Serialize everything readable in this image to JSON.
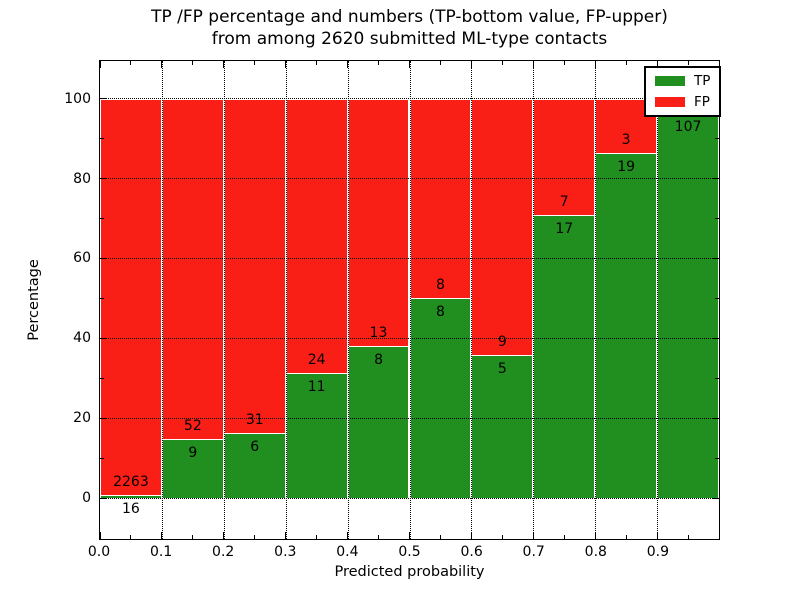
{
  "chart_data": {
    "type": "bar",
    "stacked_percentage": true,
    "title_line1": "TP /FP percentage and numbers (TP-bottom value, FP-upper)",
    "title_line2": "from among 2620 submitted ML-type contacts",
    "xlabel": "Predicted probability",
    "ylabel": "Percentage",
    "total_submitted_contacts": 2620,
    "xlim": [
      0.0,
      1.0
    ],
    "y_tick_values": [
      0,
      20,
      40,
      60,
      80,
      100
    ],
    "x_tick_labels": [
      "0.0",
      "0.1",
      "0.2",
      "0.3",
      "0.4",
      "0.5",
      "0.6",
      "0.7",
      "0.8",
      "0.9"
    ],
    "grid_style": "dotted",
    "colors": {
      "tp_green": "#208f20",
      "fp_red": "#fa1f16",
      "text": "#000000",
      "background": "#ffffff"
    },
    "legend": {
      "position": "upper right",
      "items": [
        {
          "label": "TP",
          "color": "#208f20"
        },
        {
          "label": "FP",
          "color": "#fa1f16"
        }
      ]
    },
    "bins": [
      {
        "range": "0.0-0.1",
        "tp": 16,
        "fp": 2263,
        "fp_label_visible": true
      },
      {
        "range": "0.1-0.2",
        "tp": 9,
        "fp": 52,
        "fp_label_visible": true
      },
      {
        "range": "0.2-0.3",
        "tp": 6,
        "fp": 31,
        "fp_label_visible": true
      },
      {
        "range": "0.3-0.4",
        "tp": 11,
        "fp": 24,
        "fp_label_visible": true
      },
      {
        "range": "0.4-0.5",
        "tp": 8,
        "fp": 13,
        "fp_label_visible": true
      },
      {
        "range": "0.5-0.6",
        "tp": 8,
        "fp": 8,
        "fp_label_visible": true
      },
      {
        "range": "0.6-0.7",
        "tp": 5,
        "fp": 9,
        "fp_label_visible": true
      },
      {
        "range": "0.7-0.8",
        "tp": 17,
        "fp": 7,
        "fp_label_visible": true
      },
      {
        "range": "0.8-0.9",
        "tp": 19,
        "fp": 3,
        "fp_label_visible": true
      },
      {
        "range": "0.9-1.0",
        "tp": 107,
        "fp": 4,
        "fp_label_visible": false
      }
    ]
  }
}
